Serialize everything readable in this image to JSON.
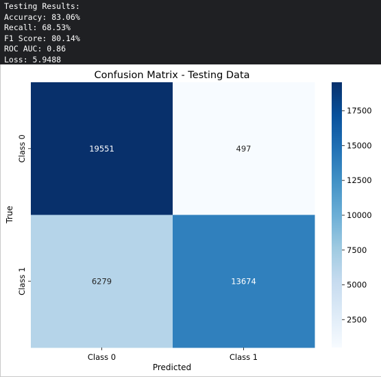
{
  "console": {
    "lines": [
      "Testing Results:",
      "Accuracy: 83.06%",
      "Recall: 68.53%",
      "F1 Score: 80.14%",
      "ROC AUC: 0.86",
      "Loss: 5.9488"
    ]
  },
  "chart_data": {
    "type": "heatmap",
    "title": "Confusion Matrix - Testing Data",
    "xlabel": "Predicted",
    "ylabel": "True",
    "x_categories": [
      "Class 0",
      "Class 1"
    ],
    "y_categories": [
      "Class 0",
      "Class 1"
    ],
    "values": [
      [
        19551,
        497
      ],
      [
        6279,
        13674
      ]
    ],
    "colormap": "Blues",
    "colorbar": {
      "min": 497,
      "max": 19551,
      "ticks": [
        2500,
        5000,
        7500,
        10000,
        12500,
        15000,
        17500
      ],
      "tick_labels": [
        "2500",
        "5000",
        "7500",
        "10000",
        "12500",
        "15000",
        "17500"
      ]
    },
    "grid": false
  }
}
